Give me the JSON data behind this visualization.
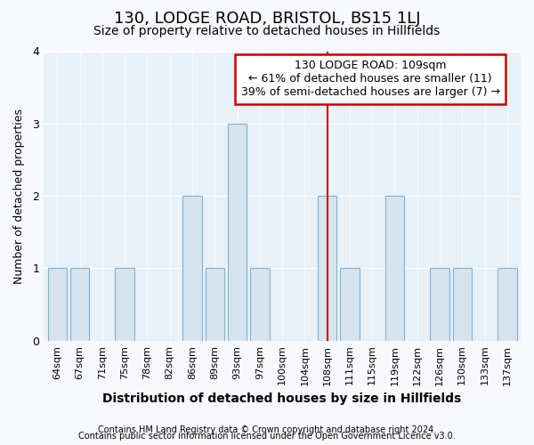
{
  "title1": "130, LODGE ROAD, BRISTOL, BS15 1LJ",
  "title2": "Size of property relative to detached houses in Hillfields",
  "xlabel": "Distribution of detached houses by size in Hillfields",
  "ylabel": "Number of detached properties",
  "categories": [
    "64sqm",
    "67sqm",
    "71sqm",
    "75sqm",
    "78sqm",
    "82sqm",
    "86sqm",
    "89sqm",
    "93sqm",
    "97sqm",
    "100sqm",
    "104sqm",
    "108sqm",
    "111sqm",
    "115sqm",
    "119sqm",
    "122sqm",
    "126sqm",
    "130sqm",
    "133sqm",
    "137sqm"
  ],
  "values": [
    1,
    1,
    0,
    1,
    0,
    0,
    2,
    1,
    3,
    1,
    0,
    0,
    2,
    1,
    0,
    2,
    0,
    1,
    1,
    0,
    1
  ],
  "bar_color": "#d6e4f0",
  "bar_edge_color": "#7fb3d3",
  "property_line_index": 12,
  "annotation_title": "130 LODGE ROAD: 109sqm",
  "annotation_line1": "← 61% of detached houses are smaller (11)",
  "annotation_line2": "39% of semi-detached houses are larger (7) →",
  "annotation_box_color": "#cc0000",
  "ylim": [
    0,
    4
  ],
  "yticks": [
    0,
    1,
    2,
    3,
    4
  ],
  "footnote1": "Contains HM Land Registry data © Crown copyright and database right 2024.",
  "footnote2": "Contains public sector information licensed under the Open Government Licence v3.0.",
  "fig_background": "#f7f9fc",
  "plot_background": "#e8f0f8",
  "grid_color": "#ffffff",
  "title1_fontsize": 13,
  "title2_fontsize": 10,
  "xlabel_fontsize": 10,
  "ylabel_fontsize": 9,
  "xtick_fontsize": 8,
  "ytick_fontsize": 9,
  "annot_fontsize": 9,
  "footnote_fontsize": 7
}
